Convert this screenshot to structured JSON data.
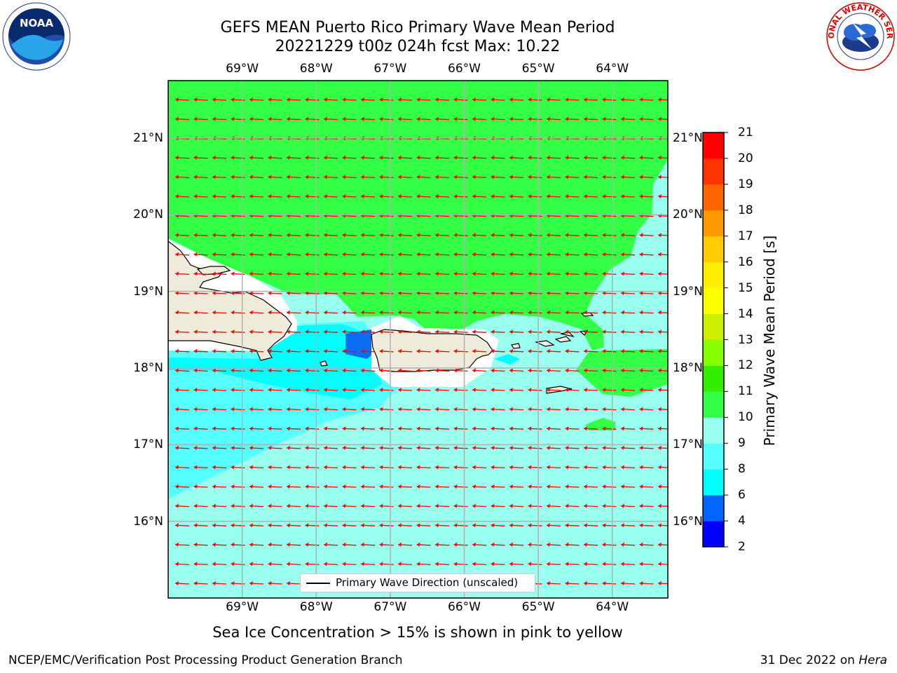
{
  "header": {
    "title": "GEFS MEAN Puerto Rico Primary Wave Mean Period",
    "subtitle": "20221229 t00z 024h fcst   Max: 10.22"
  },
  "map": {
    "lon_labels": [
      "69°W",
      "68°W",
      "67°W",
      "66°W",
      "65°W",
      "64°W"
    ],
    "lat_labels": [
      "21°N",
      "20°N",
      "19°N",
      "18°N",
      "17°N",
      "16°N"
    ],
    "lon_extent": [
      -70.0,
      -63.25
    ],
    "lat_extent": [
      15.0,
      21.75
    ],
    "max_value": 10.22,
    "arrow_color": "#ff0000",
    "wave_direction": "westward",
    "land_color": "#efebdb",
    "legend_label": "Primary Wave Direction (unscaled)"
  },
  "colorbar": {
    "label": "Primary Wave Mean Period [s]",
    "ticks": [
      "2",
      "4",
      "6",
      "8",
      "9",
      "10",
      "11",
      "12",
      "13",
      "14",
      "15",
      "16",
      "17",
      "18",
      "19",
      "20",
      "21"
    ],
    "colors": [
      "#0000ff",
      "#0066ff",
      "#00ffff",
      "#55ffff",
      "#99ffee",
      "#33ff44",
      "#33ee00",
      "#88ff00",
      "#ccee00",
      "#ffff00",
      "#ffee00",
      "#ffcc00",
      "#ff9900",
      "#ff6600",
      "#ff3300",
      "#ff0000"
    ]
  },
  "caption": "Sea Ice Concentration > 15% is shown in pink to yellow",
  "footer": {
    "left": "NCEP/EMC/Verification Post Processing Product Generation Branch",
    "date": "31 Dec 2022 on",
    "machine": "Hera"
  },
  "logos": {
    "noaa_text": "NOAA",
    "nws_text": "NATIONAL WEATHER SERVICE"
  }
}
